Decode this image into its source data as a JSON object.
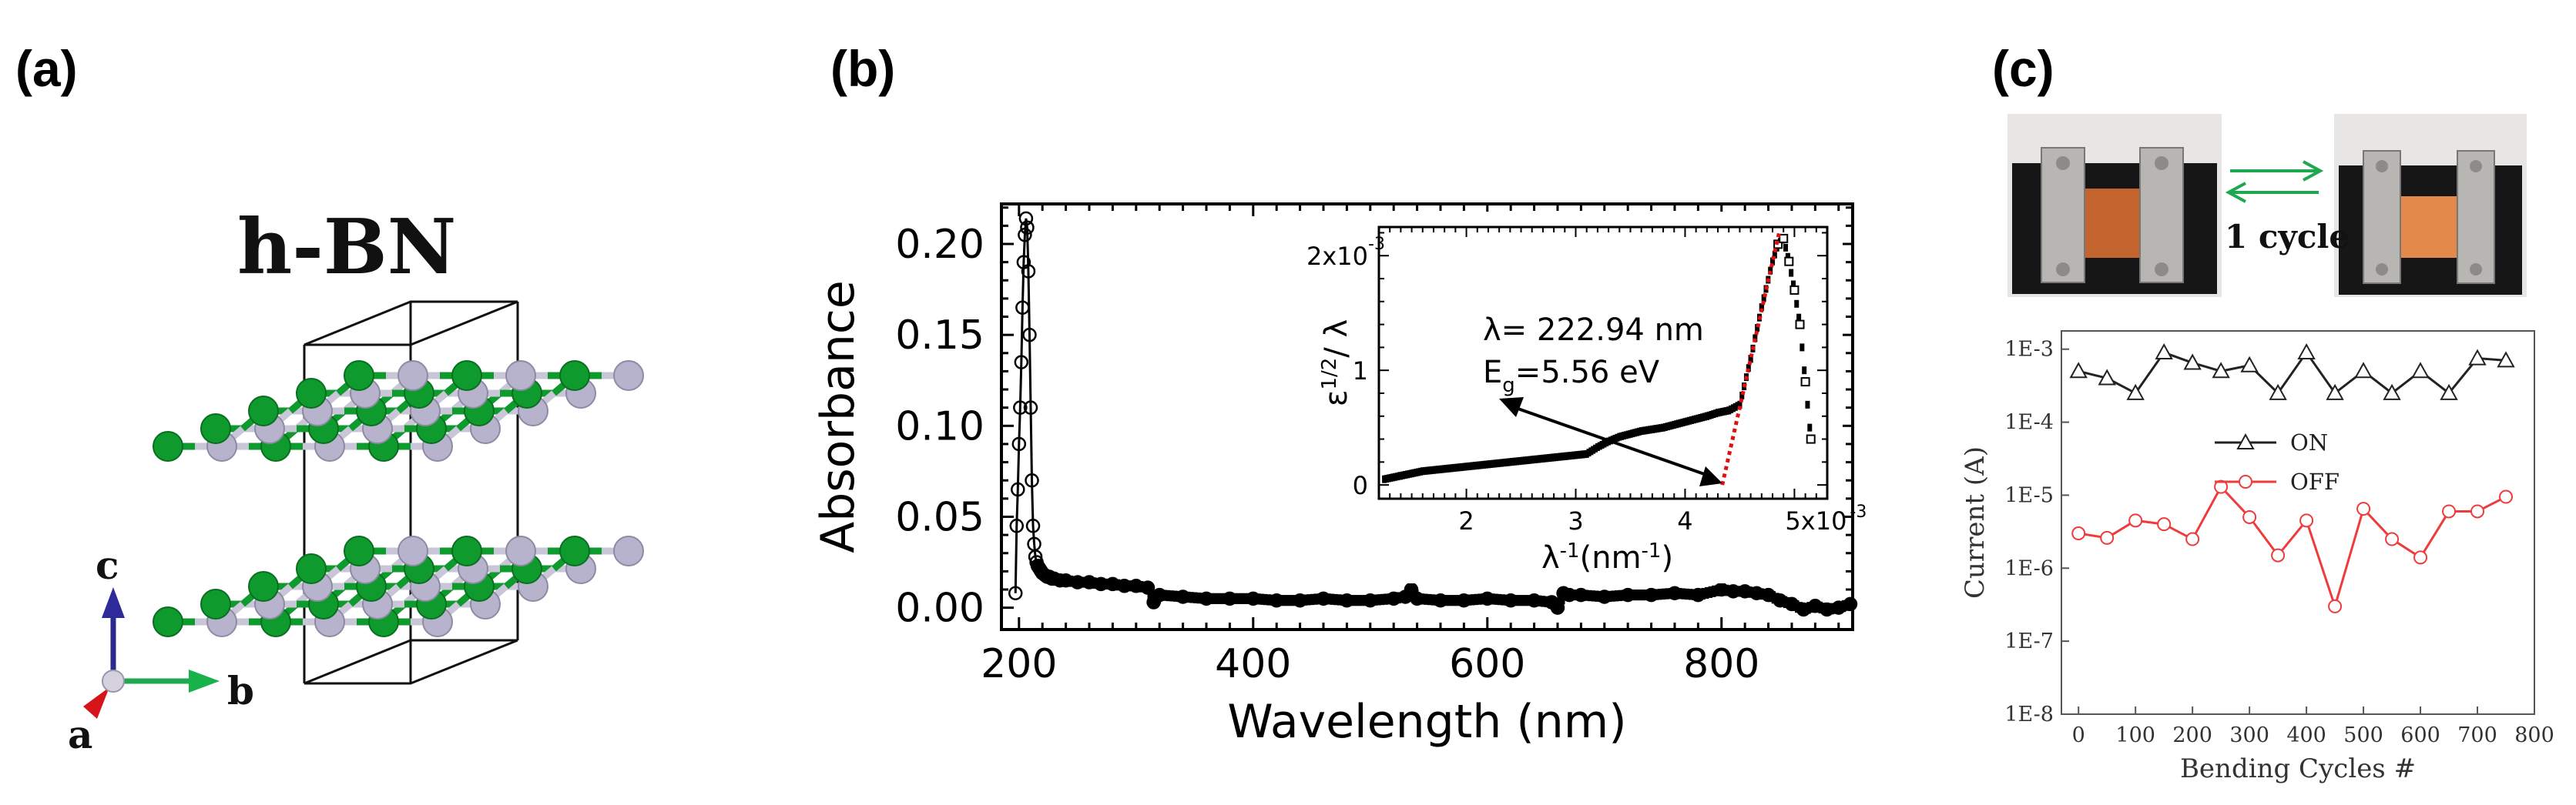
{
  "panels": {
    "a": {
      "label": "(a)",
      "title": "h-BN",
      "axis_labels": {
        "c": "c",
        "b": "b",
        "a": "a"
      },
      "colors": {
        "boron": "#0f9a2e",
        "nitrogen": "#b7b3cc",
        "bond_light": "#c9c6d8"
      }
    },
    "b": {
      "label": "(b)",
      "inset_annotation_lambda": "λ= 222.94 nm",
      "inset_annotation_eg_prefix": "E",
      "inset_annotation_eg_sub": "g",
      "inset_annotation_eg_suffix": "=5.56 eV"
    },
    "c": {
      "label": "(c)",
      "photo_caption": "1 cycle",
      "arrow_color": "#1ea84f"
    }
  },
  "chart_data": [
    {
      "id": "absorbance",
      "type": "line",
      "xlabel": "Wavelength (nm)",
      "ylabel": "Absorbance",
      "xlim": [
        185,
        912
      ],
      "ylim": [
        -0.012,
        0.222
      ],
      "xticks": [
        200,
        400,
        600,
        800
      ],
      "yticks": [
        0.0,
        0.05,
        0.1,
        0.15,
        0.2
      ],
      "ytick_labels": [
        "0.00",
        "0.05",
        "0.10",
        "0.15",
        "0.20"
      ],
      "x": [
        197,
        198,
        199,
        200,
        201,
        202,
        203,
        204,
        205,
        206,
        207,
        208,
        209,
        210,
        211,
        212,
        213,
        214,
        215,
        216,
        217,
        218,
        219,
        220,
        222,
        224,
        226,
        228,
        230,
        235,
        240,
        250,
        260,
        270,
        280,
        290,
        300,
        310,
        315,
        320,
        340,
        360,
        380,
        400,
        420,
        440,
        460,
        480,
        500,
        520,
        530,
        535,
        540,
        560,
        580,
        600,
        620,
        640,
        655,
        660,
        665,
        670,
        680,
        700,
        720,
        740,
        760,
        780,
        800,
        810,
        820,
        830,
        840,
        850,
        860,
        870,
        880,
        890,
        900,
        910
      ],
      "values": [
        0.008,
        0.045,
        0.065,
        0.09,
        0.11,
        0.135,
        0.165,
        0.19,
        0.205,
        0.214,
        0.209,
        0.185,
        0.15,
        0.11,
        0.07,
        0.045,
        0.035,
        0.028,
        0.025,
        0.023,
        0.022,
        0.021,
        0.02,
        0.019,
        0.018,
        0.017,
        0.017,
        0.016,
        0.016,
        0.015,
        0.015,
        0.014,
        0.014,
        0.013,
        0.013,
        0.012,
        0.012,
        0.011,
        0.003,
        0.007,
        0.006,
        0.005,
        0.005,
        0.005,
        0.004,
        0.004,
        0.005,
        0.004,
        0.004,
        0.005,
        0.006,
        0.01,
        0.005,
        0.004,
        0.004,
        0.005,
        0.004,
        0.004,
        0.003,
        0.0,
        0.008,
        0.007,
        0.007,
        0.006,
        0.007,
        0.007,
        0.008,
        0.007,
        0.01,
        0.009,
        0.009,
        0.008,
        0.007,
        0.004,
        0.002,
        -0.001,
        0.001,
        -0.001,
        0.0,
        0.002
      ]
    },
    {
      "id": "tauc-inset",
      "type": "line",
      "xlabel_main": "λ",
      "xlabel_sup": "-1",
      "xlabel_unit": "(nm",
      "xlabel_unit_sup": "-1",
      "xlabel_close": ")",
      "ylabel_eps": "ε",
      "ylabel_sup": "1/2",
      "ylabel_rest": "/ λ",
      "xlim": [
        1.2,
        5.3
      ],
      "ylim": [
        -0.12,
        2.25
      ],
      "xticks": [
        2,
        3,
        4,
        5
      ],
      "xtick_labels": [
        "2",
        "3",
        "4",
        "5x10"
      ],
      "xtick_last_sup": "-3",
      "yticks": [
        0,
        1,
        2
      ],
      "ytick_labels": [
        "0",
        "1",
        "2x10"
      ],
      "ytick_last_sup": "-3",
      "x": [
        1.25,
        1.4,
        1.6,
        1.8,
        2.0,
        2.2,
        2.4,
        2.6,
        2.8,
        3.0,
        3.1,
        3.2,
        3.3,
        3.4,
        3.6,
        3.8,
        4.0,
        4.2,
        4.3,
        4.4,
        4.5,
        4.6,
        4.7,
        4.8,
        4.85,
        4.9,
        4.95,
        5.0,
        5.05,
        5.1,
        5.15
      ],
      "values": [
        0.05,
        0.08,
        0.12,
        0.14,
        0.16,
        0.18,
        0.2,
        0.22,
        0.24,
        0.26,
        0.27,
        0.33,
        0.38,
        0.42,
        0.47,
        0.5,
        0.55,
        0.6,
        0.63,
        0.65,
        0.7,
        1.1,
        1.55,
        1.95,
        2.1,
        2.15,
        1.95,
        1.7,
        1.4,
        0.9,
        0.4
      ],
      "fit_line": {
        "x": [
          4.34,
          4.86
        ],
        "values": [
          0.0,
          2.2
        ]
      },
      "fit_color": "#e01010"
    },
    {
      "id": "bending",
      "type": "line",
      "xlabel": "Bending Cycles #",
      "ylabel": "Current (A)",
      "xlim": [
        -30,
        800
      ],
      "ylog": true,
      "ylim_exp": [
        -8,
        -2.75
      ],
      "xticks": [
        0,
        100,
        200,
        300,
        400,
        500,
        600,
        700,
        800
      ],
      "yticks_exp": [
        -8,
        -7,
        -6,
        -5,
        -4,
        -3
      ],
      "ytick_labels": [
        "1E-8",
        "1E-7",
        "1E-6",
        "1E-5",
        "1E-4",
        "1E-3"
      ],
      "series": [
        {
          "name": "ON",
          "color": "#222222",
          "marker": "triangle",
          "x": [
            0,
            50,
            100,
            150,
            200,
            250,
            300,
            350,
            400,
            450,
            500,
            550,
            600,
            650,
            700,
            750
          ],
          "values": [
            0.0005,
            0.0004,
            0.00025,
            0.0009,
            0.00065,
            0.0005,
            0.0006,
            0.00025,
            0.0009,
            0.00025,
            0.0005,
            0.00025,
            0.0005,
            0.00025,
            0.00075,
            0.0007
          ]
        },
        {
          "name": "OFF",
          "color": "#ef3b3b",
          "marker": "circle",
          "x": [
            0,
            50,
            100,
            150,
            200,
            250,
            300,
            350,
            400,
            450,
            500,
            550,
            600,
            650,
            700,
            750
          ],
          "values": [
            3e-06,
            2.6e-06,
            4.5e-06,
            4e-06,
            2.5e-06,
            1.3e-05,
            5e-06,
            1.5e-06,
            4.5e-06,
            3e-07,
            6.5e-06,
            2.5e-06,
            1.4e-06,
            6e-06,
            6e-06,
            9.5e-06
          ]
        }
      ]
    }
  ]
}
